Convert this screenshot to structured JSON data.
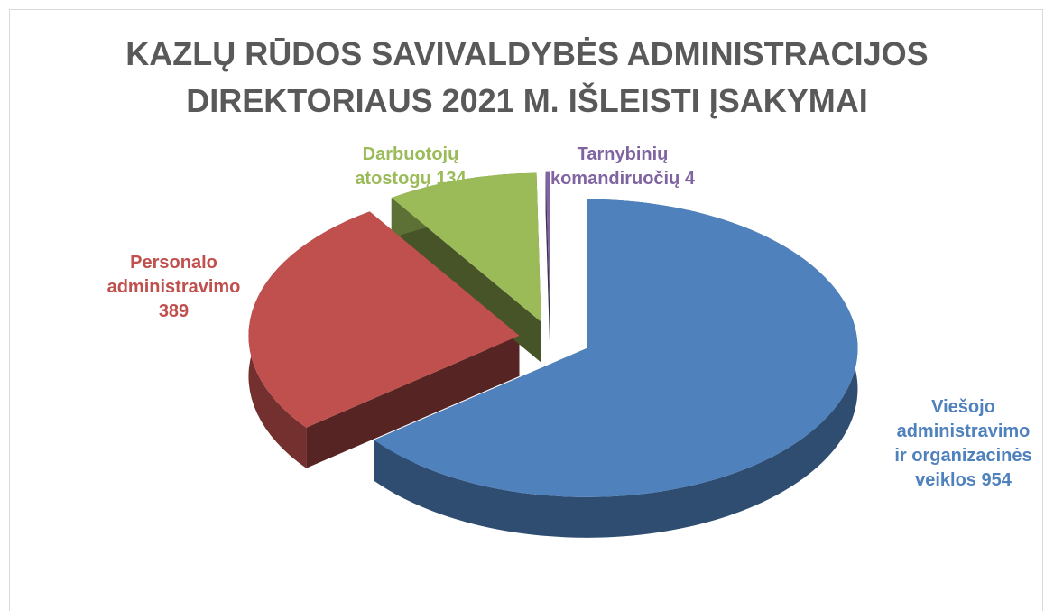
{
  "chart_data": {
    "type": "pie",
    "title": "KAZLŲ RŪDOS SAVIVALDYBĖS ADMINISTRACIJOS DIREKTORIAUS 2021 M. IŠLEISTI ĮSAKYMAI",
    "categories": [
      "Viešojo administravimo ir organizacinės veiklos",
      "Personalo administravimo",
      "Darbuotojų atostogų",
      "Tarnybinių komandiruočių"
    ],
    "values": [
      954,
      389,
      134,
      4
    ],
    "colors": [
      "#4f81bd",
      "#c0504d",
      "#9bbb59",
      "#8064a2"
    ]
  }
}
